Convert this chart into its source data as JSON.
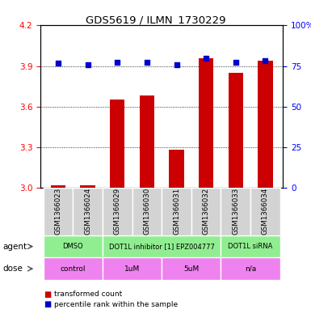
{
  "title": "GDS5619 / ILMN_1730229",
  "samples": [
    "GSM1366023",
    "GSM1366024",
    "GSM1366029",
    "GSM1366030",
    "GSM1366031",
    "GSM1366032",
    "GSM1366033",
    "GSM1366034"
  ],
  "bar_values": [
    3.02,
    3.02,
    3.65,
    3.68,
    3.28,
    3.96,
    3.85,
    3.94
  ],
  "dot_values": [
    3.92,
    3.91,
    3.93,
    3.93,
    3.91,
    3.96,
    3.93,
    3.94
  ],
  "ylim": [
    3.0,
    4.2
  ],
  "y2lim": [
    0,
    100
  ],
  "yticks": [
    3.0,
    3.3,
    3.6,
    3.9,
    4.2
  ],
  "y2ticks": [
    0,
    25,
    50,
    75,
    100
  ],
  "bar_color": "#cc0000",
  "dot_color": "#0000cc",
  "bar_width": 0.5,
  "agent_groups": [
    {
      "text": "DMSO",
      "start": 0,
      "end": 1
    },
    {
      "text": "DOT1L inhibitor [1] EPZ004777",
      "start": 2,
      "end": 5
    },
    {
      "text": "DOT1L siRNA",
      "start": 6,
      "end": 7
    }
  ],
  "dose_groups": [
    {
      "text": "control",
      "start": 0,
      "end": 1
    },
    {
      "text": "1uM",
      "start": 2,
      "end": 3
    },
    {
      "text": "5uM",
      "start": 4,
      "end": 5
    },
    {
      "text": "n/a",
      "start": 6,
      "end": 7
    }
  ],
  "legend_bar_label": "transformed count",
  "legend_dot_label": "percentile rank within the sample",
  "agent_row_label": "agent",
  "dose_row_label": "dose",
  "sample_bg_color": "#d3d3d3",
  "agent_color": "#90ee90",
  "dose_color": "#ee82ee",
  "grid_lines": [
    3.9,
    3.6,
    3.3
  ]
}
